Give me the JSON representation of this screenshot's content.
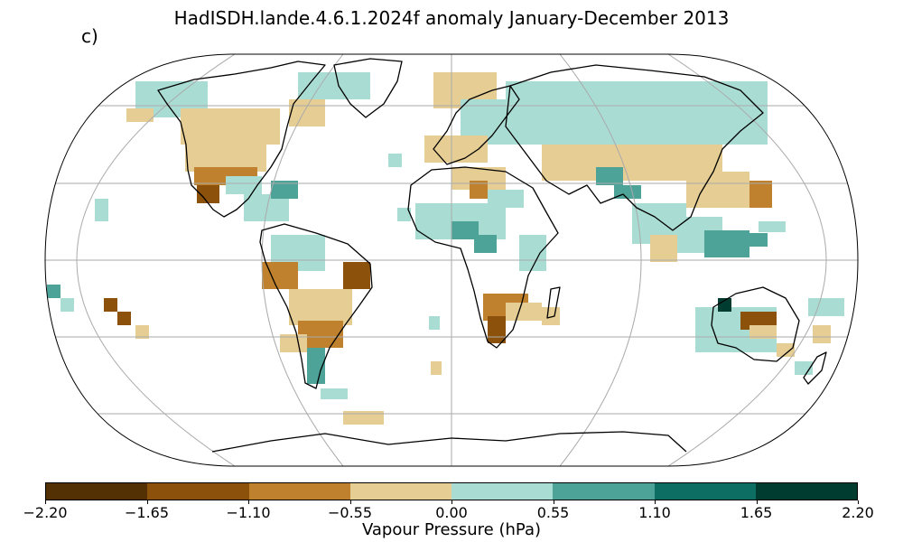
{
  "title": "HadISDH.lande.4.6.1.2024f anomaly January-December 2013",
  "panel_label": "c)",
  "colorbar": {
    "label": "Vapour Pressure (hPa)",
    "ticks": [
      "−2.20",
      "−1.65",
      "−1.10",
      "−0.55",
      "0.00",
      "0.55",
      "1.10",
      "1.65",
      "2.20"
    ],
    "colors": [
      "#543005",
      "#8c510a",
      "#bf812d",
      "#e6cd94",
      "#a9ddd4",
      "#4ea399",
      "#0d6e63",
      "#003c30"
    ]
  },
  "map": {
    "projection": "Robinson",
    "gridline_color": "#aaaaaa",
    "land_outline_color": "#000000"
  }
}
